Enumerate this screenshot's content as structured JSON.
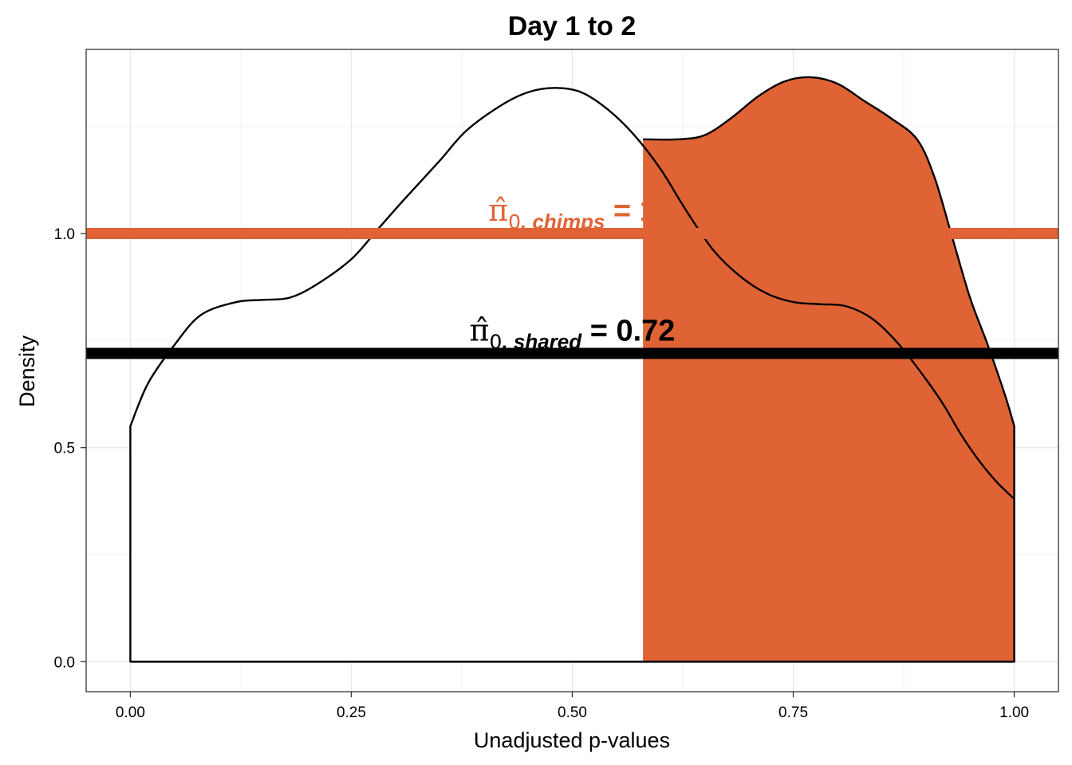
{
  "chart_data": {
    "type": "area",
    "title": "Day 1 to 2",
    "xlabel": "Unadjusted p-values",
    "ylabel": "Density",
    "xlim": [
      -0.05,
      1.05
    ],
    "ylim": [
      -0.07,
      1.43
    ],
    "x_ticks": [
      0.0,
      0.25,
      0.5,
      0.75,
      1.0
    ],
    "x_tick_labels": [
      "0.00",
      "0.25",
      "0.50",
      "0.75",
      "1.00"
    ],
    "y_ticks": [
      0.0,
      0.5,
      1.0
    ],
    "y_tick_labels": [
      "0.0",
      "0.5",
      "1.0"
    ],
    "grid": true,
    "series": [
      {
        "role": "shared-density",
        "color": "#000000",
        "fill": "#ffffff",
        "x": [
          0.0,
          0.02,
          0.05,
          0.08,
          0.12,
          0.15,
          0.18,
          0.21,
          0.25,
          0.28,
          0.31,
          0.35,
          0.38,
          0.42,
          0.45,
          0.48,
          0.51,
          0.54,
          0.57,
          0.6,
          0.63,
          0.66,
          0.69,
          0.72,
          0.75,
          0.78,
          0.81,
          0.84,
          0.87,
          0.9,
          0.92,
          0.94,
          0.96,
          0.98,
          1.0
        ],
        "y": [
          0.55,
          0.65,
          0.74,
          0.81,
          0.84,
          0.845,
          0.85,
          0.88,
          0.94,
          1.01,
          1.08,
          1.17,
          1.24,
          1.3,
          1.33,
          1.34,
          1.33,
          1.29,
          1.23,
          1.15,
          1.05,
          0.96,
          0.9,
          0.86,
          0.84,
          0.835,
          0.83,
          0.8,
          0.74,
          0.66,
          0.6,
          0.53,
          0.47,
          0.42,
          0.38
        ]
      },
      {
        "role": "chimps-density",
        "color": "#000000",
        "fill": "#e06335",
        "x": [
          0.58,
          0.62,
          0.65,
          0.68,
          0.71,
          0.74,
          0.77,
          0.8,
          0.83,
          0.86,
          0.89,
          0.91,
          0.93,
          0.95,
          0.97,
          0.99,
          1.0
        ],
        "y": [
          1.22,
          1.22,
          1.23,
          1.27,
          1.32,
          1.355,
          1.365,
          1.35,
          1.31,
          1.27,
          1.22,
          1.13,
          0.99,
          0.85,
          0.74,
          0.62,
          0.55
        ]
      }
    ],
    "hlines": [
      {
        "name": "pi0_chimps",
        "y": 1.0,
        "color": "#e06335"
      },
      {
        "name": "pi0_shared",
        "y": 0.72,
        "color": "#000000"
      }
    ],
    "annotations": [
      {
        "id": "chimps",
        "symbol": "π̂",
        "sub_index": "0",
        "sub_text": ", chimps",
        "equals": " = ",
        "value": "1",
        "color": "#e06335",
        "x": 0.5,
        "y": 1.03
      },
      {
        "id": "shared",
        "symbol": "π̂",
        "sub_index": "0",
        "sub_text": ", shared",
        "equals": " = ",
        "value": "0.72",
        "color": "#000000",
        "x": 0.5,
        "y": 0.75
      }
    ]
  }
}
